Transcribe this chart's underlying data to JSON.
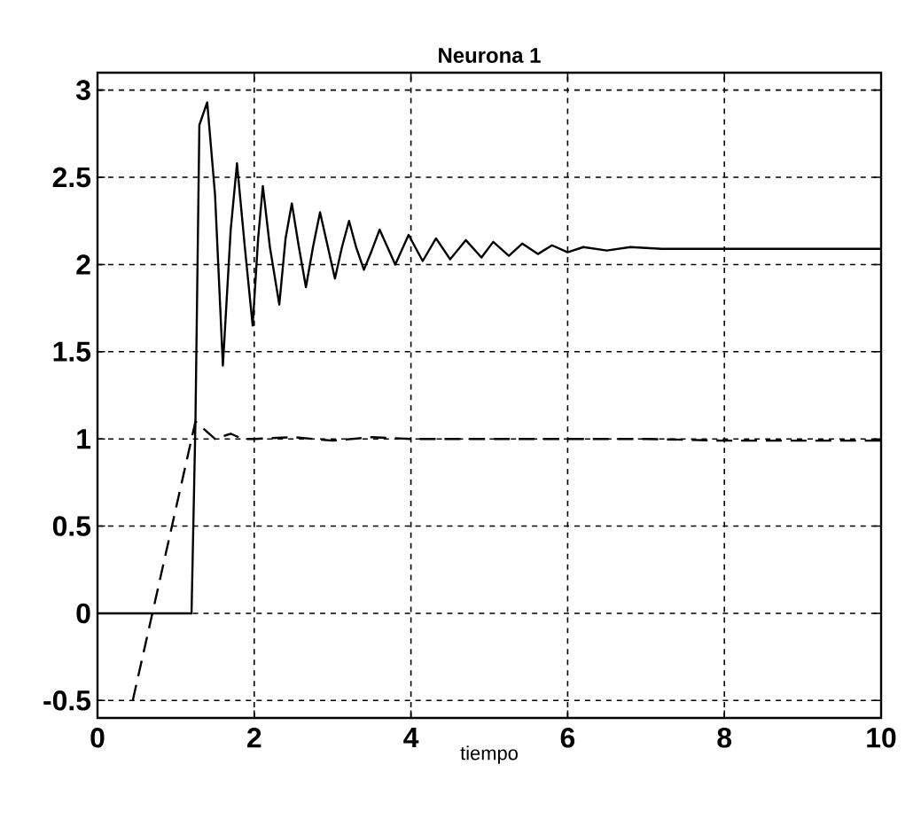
{
  "chart_data": {
    "type": "line",
    "title": "Neurona 1",
    "xlabel": "tiempo",
    "xlim": [
      0,
      10
    ],
    "ylim": [
      -0.6,
      3.1
    ],
    "xticks": [
      0,
      2,
      4,
      6,
      8,
      10
    ],
    "yticks": [
      -0.5,
      0,
      0.5,
      1,
      1.5,
      2,
      2.5,
      3
    ],
    "grid": true,
    "marker": "none",
    "series": [
      {
        "color": "#000000",
        "line_style": "solid",
        "x": [
          0,
          1.2,
          1.25,
          1.3,
          1.4,
          1.5,
          1.6,
          1.7,
          1.78,
          1.88,
          1.98,
          2.05,
          2.11,
          2.2,
          2.32,
          2.4,
          2.48,
          2.57,
          2.66,
          2.75,
          2.84,
          2.94,
          3.03,
          3.12,
          3.21,
          3.3,
          3.4,
          3.5,
          3.6,
          3.7,
          3.8,
          3.9,
          3.97,
          4.15,
          4.32,
          4.5,
          4.7,
          4.9,
          5.05,
          5.25,
          5.42,
          5.62,
          5.8,
          6.0,
          6.2,
          6.5,
          6.8,
          7.2,
          7.6,
          8.0,
          10
        ],
        "values": [
          0,
          0,
          1.1,
          2.8,
          2.93,
          2.4,
          1.42,
          2.2,
          2.58,
          2.1,
          1.65,
          2.15,
          2.45,
          2.1,
          1.77,
          2.15,
          2.35,
          2.1,
          1.87,
          2.1,
          2.3,
          2.1,
          1.92,
          2.1,
          2.25,
          2.1,
          1.97,
          2.08,
          2.2,
          2.1,
          2.0,
          2.1,
          2.17,
          2.02,
          2.15,
          2.03,
          2.14,
          2.04,
          2.13,
          2.05,
          2.12,
          2.06,
          2.11,
          2.07,
          2.1,
          2.08,
          2.1,
          2.09,
          2.09,
          2.09,
          2.09
        ]
      },
      {
        "color": "#000000",
        "line_style": "dashed",
        "x": [
          0.45,
          1.25,
          1.35,
          1.5,
          1.7,
          1.85,
          2.0,
          2.5,
          3.0,
          3.5,
          4.0,
          5.0,
          6.0,
          7.0,
          8.0,
          10
        ],
        "values": [
          -0.5,
          1.1,
          1.06,
          1.0,
          1.03,
          1.0,
          1.0,
          1.01,
          0.99,
          1.01,
          1.0,
          1.0,
          1.0,
          1.0,
          0.99,
          0.99
        ]
      }
    ]
  }
}
